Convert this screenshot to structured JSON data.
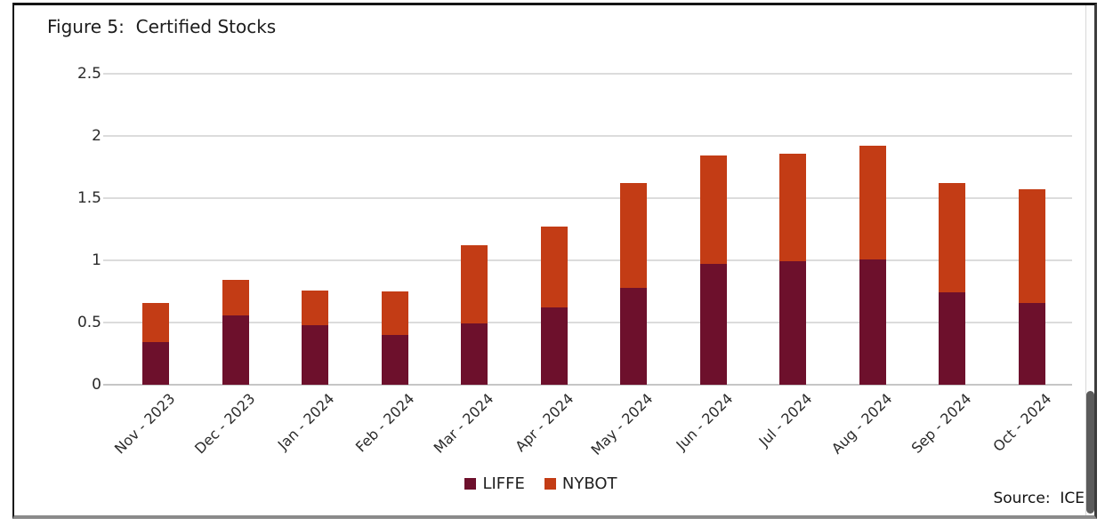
{
  "figure": {
    "title": "Figure 5:  Certified Stocks",
    "source": "Source:  ICE"
  },
  "chart_data": {
    "type": "bar",
    "stacked": true,
    "title": "Figure 5: Certified Stocks",
    "xlabel": "",
    "ylabel": "",
    "ylim": [
      0,
      2.5
    ],
    "yticks": [
      0,
      0.5,
      1,
      1.5,
      2,
      2.5
    ],
    "ytick_labels": [
      "0",
      "0.5",
      "1",
      "1.5",
      "2",
      "2.5"
    ],
    "grid": true,
    "legend_position": "bottom",
    "categories": [
      "Nov - 2023",
      "Dec - 2023",
      "Jan - 2024",
      "Feb - 2024",
      "Mar - 2024",
      "Apr - 2024",
      "May - 2024",
      "Jun - 2024",
      "Jul - 2024",
      "Aug - 2024",
      "Sep - 2024",
      "Oct - 2024"
    ],
    "series": [
      {
        "name": "LIFFE",
        "color": "#6d102c",
        "values": [
          0.34,
          0.56,
          0.48,
          0.4,
          0.49,
          0.62,
          0.78,
          0.97,
          0.99,
          1.01,
          0.74,
          0.66
        ]
      },
      {
        "name": "NYBOT",
        "color": "#c33c15",
        "values": [
          0.32,
          0.28,
          0.28,
          0.35,
          0.63,
          0.65,
          0.84,
          0.87,
          0.87,
          0.91,
          0.88,
          0.91
        ]
      }
    ],
    "totals": [
      0.66,
      0.84,
      0.76,
      0.75,
      1.12,
      1.27,
      1.62,
      1.84,
      1.86,
      1.92,
      1.62,
      1.57
    ]
  },
  "colors": {
    "liffe": "#6d102c",
    "nybot": "#c33c15",
    "gridline": "#dcdcdc",
    "text": "#1c1c1c"
  }
}
